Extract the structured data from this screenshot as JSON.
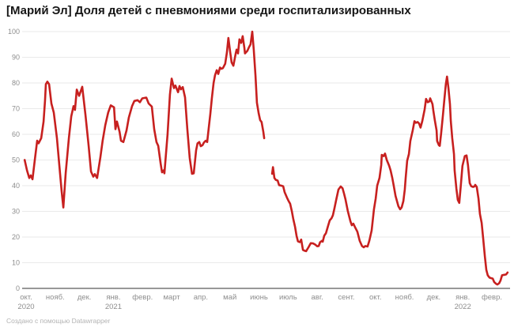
{
  "header": {
    "title": "[Марий Эл] Доля детей с пневмониями среди госпитализированных"
  },
  "footer": {
    "attribution": "Создано с помощью Datawrapper"
  },
  "colors": {
    "background": "#ffffff",
    "line": "#c7201f",
    "grid": "#eaeaea",
    "baseline": "#989898",
    "axis_text": "#8e8e8e",
    "title_text": "#161616",
    "footer_text": "#b3b3b3"
  },
  "chart_data": {
    "type": "line",
    "title": "[Марий Эл] Доля детей с пневмониями среди госпитализированных",
    "xlabel": "",
    "ylabel": "",
    "ylim": [
      0,
      100
    ],
    "grid": true,
    "legend": "none",
    "x_axis_note": "x given as month index along axis: 0 = окт. 2020 tick, 1 = нояб. 2020, ... 16 = февр. 2022; daily data with a gap in июнь 2021",
    "y_ticks": [
      0,
      10,
      20,
      30,
      40,
      50,
      60,
      70,
      80,
      90,
      100
    ],
    "x_tick_labels": [
      "окт.",
      "нояб.",
      "дек.",
      "янв.",
      "февр.",
      "март",
      "апр.",
      "май",
      "июнь",
      "июль",
      "авг.",
      "сент.",
      "окт.",
      "нояб.",
      "дек.",
      "янв.",
      "февр."
    ],
    "x_tick_sublabels": {
      "0": "2020",
      "3": "2021",
      "15": "2022"
    },
    "series": [
      {
        "name": "Доля детей с пневмониями среди госпитализированных, %",
        "color": "#c7201f",
        "segments": [
          [
            [
              -0.05,
              50
            ],
            [
              0.03,
              46
            ],
            [
              0.11,
              43
            ],
            [
              0.16,
              44
            ],
            [
              0.22,
              42.5
            ],
            [
              0.3,
              50
            ],
            [
              0.38,
              57.5
            ],
            [
              0.43,
              56.5
            ],
            [
              0.52,
              58.5
            ],
            [
              0.6,
              65
            ],
            [
              0.65,
              73
            ],
            [
              0.68,
              79.5
            ],
            [
              0.73,
              80.5
            ],
            [
              0.79,
              79.5
            ],
            [
              0.87,
              72
            ],
            [
              0.95,
              68.5
            ],
            [
              1.06,
              58.5
            ],
            [
              1.14,
              48
            ],
            [
              1.22,
              38
            ],
            [
              1.28,
              31.5
            ],
            [
              1.36,
              45
            ],
            [
              1.47,
              58.5
            ],
            [
              1.55,
              67
            ],
            [
              1.63,
              71
            ],
            [
              1.68,
              69.5
            ],
            [
              1.74,
              77.4
            ],
            [
              1.82,
              75
            ],
            [
              1.93,
              78.5
            ],
            [
              2.04,
              67.5
            ],
            [
              2.15,
              55.5
            ],
            [
              2.23,
              45.5
            ],
            [
              2.31,
              43.5
            ],
            [
              2.36,
              44.5
            ],
            [
              2.44,
              43
            ],
            [
              2.55,
              51
            ],
            [
              2.63,
              57.5
            ],
            [
              2.72,
              63.5
            ],
            [
              2.82,
              68.5
            ],
            [
              2.91,
              71.3
            ],
            [
              3.02,
              70.5
            ],
            [
              3.07,
              62
            ],
            [
              3.12,
              65
            ],
            [
              3.21,
              61
            ],
            [
              3.26,
              57.5
            ],
            [
              3.34,
              57
            ],
            [
              3.45,
              61.5
            ],
            [
              3.53,
              66.5
            ],
            [
              3.64,
              71
            ],
            [
              3.72,
              73
            ],
            [
              3.83,
              73.3
            ],
            [
              3.91,
              72.5
            ],
            [
              3.99,
              74
            ],
            [
              4.13,
              74.3
            ],
            [
              4.21,
              72
            ],
            [
              4.32,
              70.8
            ],
            [
              4.4,
              62
            ],
            [
              4.48,
              57
            ],
            [
              4.54,
              55.5
            ],
            [
              4.62,
              48.7
            ],
            [
              4.67,
              45.2
            ],
            [
              4.73,
              46
            ],
            [
              4.75,
              44.8
            ],
            [
              4.86,
              60
            ],
            [
              4.94,
              75.5
            ],
            [
              5.0,
              81.7
            ],
            [
              5.08,
              78
            ],
            [
              5.13,
              79
            ],
            [
              5.22,
              76.4
            ],
            [
              5.27,
              78.8
            ],
            [
              5.32,
              77.5
            ],
            [
              5.38,
              78.4
            ],
            [
              5.46,
              74.4
            ],
            [
              5.54,
              62
            ],
            [
              5.62,
              50.8
            ],
            [
              5.7,
              44.6
            ],
            [
              5.76,
              44.8
            ],
            [
              5.84,
              53.8
            ],
            [
              5.89,
              56.5
            ],
            [
              5.95,
              57
            ],
            [
              6.0,
              55.4
            ],
            [
              6.06,
              55.8
            ],
            [
              6.11,
              56.8
            ],
            [
              6.17,
              57.5
            ],
            [
              6.22,
              57
            ],
            [
              6.27,
              62
            ],
            [
              6.33,
              68
            ],
            [
              6.38,
              74
            ],
            [
              6.44,
              80
            ],
            [
              6.49,
              83
            ],
            [
              6.55,
              85
            ],
            [
              6.6,
              83.5
            ],
            [
              6.66,
              86
            ],
            [
              6.71,
              85.5
            ],
            [
              6.76,
              85.8
            ],
            [
              6.84,
              87.5
            ],
            [
              6.9,
              92
            ],
            [
              6.95,
              97.5
            ],
            [
              7.01,
              92
            ],
            [
              7.06,
              88
            ],
            [
              7.12,
              86.7
            ],
            [
              7.2,
              91.5
            ],
            [
              7.23,
              93
            ],
            [
              7.28,
              91.5
            ],
            [
              7.33,
              97
            ],
            [
              7.39,
              95.6
            ],
            [
              7.44,
              98.2
            ],
            [
              7.5,
              93.5
            ],
            [
              7.52,
              91.5
            ],
            [
              7.6,
              92.5
            ],
            [
              7.66,
              94
            ],
            [
              7.71,
              95
            ],
            [
              7.77,
              100
            ],
            [
              7.82,
              93
            ],
            [
              7.88,
              82.8
            ],
            [
              7.93,
              72.3
            ],
            [
              7.99,
              68.2
            ],
            [
              8.04,
              65.5
            ],
            [
              8.09,
              64.8
            ],
            [
              8.15,
              61
            ],
            [
              8.18,
              58.5
            ]
          ],
          [
            [
              8.45,
              44.6
            ],
            [
              8.48,
              47.2
            ],
            [
              8.53,
              43
            ],
            [
              8.58,
              42.2
            ],
            [
              8.64,
              42
            ],
            [
              8.69,
              40.2
            ],
            [
              8.77,
              40
            ],
            [
              8.83,
              39.8
            ],
            [
              8.88,
              37.5
            ],
            [
              8.96,
              35.4
            ],
            [
              9.02,
              34
            ],
            [
              9.07,
              33
            ],
            [
              9.13,
              30
            ],
            [
              9.18,
              27
            ],
            [
              9.24,
              24
            ],
            [
              9.29,
              20.5
            ],
            [
              9.34,
              18.3
            ],
            [
              9.4,
              18
            ],
            [
              9.45,
              19
            ],
            [
              9.51,
              15
            ],
            [
              9.56,
              14.7
            ],
            [
              9.62,
              14.5
            ],
            [
              9.7,
              16
            ],
            [
              9.78,
              17.6
            ],
            [
              9.86,
              17.5
            ],
            [
              9.94,
              17
            ],
            [
              10.0,
              16.4
            ],
            [
              10.05,
              16.5
            ],
            [
              10.1,
              18
            ],
            [
              10.16,
              18.5
            ],
            [
              10.19,
              18.2
            ],
            [
              10.24,
              20.5
            ],
            [
              10.3,
              21.5
            ],
            [
              10.38,
              24.6
            ],
            [
              10.43,
              26.5
            ],
            [
              10.49,
              27.3
            ],
            [
              10.54,
              28.5
            ],
            [
              10.59,
              31
            ],
            [
              10.65,
              34.4
            ],
            [
              10.73,
              38.5
            ],
            [
              10.81,
              39.7
            ],
            [
              10.87,
              39
            ],
            [
              10.92,
              37
            ],
            [
              10.97,
              34.8
            ],
            [
              11.05,
              30.2
            ],
            [
              11.14,
              26.2
            ],
            [
              11.19,
              24.6
            ],
            [
              11.24,
              25.2
            ],
            [
              11.3,
              23.8
            ],
            [
              11.38,
              22.1
            ],
            [
              11.46,
              18.5
            ],
            [
              11.54,
              16.5
            ],
            [
              11.6,
              16
            ],
            [
              11.65,
              16.5
            ],
            [
              11.73,
              16.3
            ],
            [
              11.79,
              18.5
            ],
            [
              11.87,
              22.6
            ],
            [
              11.95,
              30.8
            ],
            [
              12.01,
              35
            ],
            [
              12.06,
              40
            ],
            [
              12.14,
              43
            ],
            [
              12.2,
              48
            ],
            [
              12.22,
              52
            ],
            [
              12.28,
              51.5
            ],
            [
              12.33,
              52.5
            ],
            [
              12.39,
              50
            ],
            [
              12.47,
              47.8
            ],
            [
              12.52,
              46
            ],
            [
              12.58,
              43
            ],
            [
              12.63,
              40
            ],
            [
              12.69,
              36
            ],
            [
              12.74,
              34
            ],
            [
              12.79,
              32
            ],
            [
              12.85,
              30.8
            ],
            [
              12.9,
              31.5
            ],
            [
              12.96,
              34
            ],
            [
              13.01,
              38.5
            ],
            [
              13.04,
              43
            ],
            [
              13.09,
              49.7
            ],
            [
              13.15,
              52.3
            ],
            [
              13.2,
              57.4
            ],
            [
              13.28,
              61.5
            ],
            [
              13.34,
              65.1
            ],
            [
              13.39,
              64.5
            ],
            [
              13.45,
              64.8
            ],
            [
              13.5,
              64.2
            ],
            [
              13.55,
              62.6
            ],
            [
              13.61,
              65.1
            ],
            [
              13.69,
              69.7
            ],
            [
              13.74,
              73.8
            ],
            [
              13.8,
              72.5
            ],
            [
              13.85,
              72.8
            ],
            [
              13.88,
              74
            ],
            [
              13.96,
              71.8
            ],
            [
              13.99,
              69.2
            ],
            [
              14.04,
              65.6
            ],
            [
              14.1,
              61.5
            ],
            [
              14.12,
              57.4
            ],
            [
              14.18,
              55.8
            ],
            [
              14.21,
              55.5
            ],
            [
              14.26,
              60.5
            ],
            [
              14.32,
              67.7
            ],
            [
              14.37,
              73.8
            ],
            [
              14.42,
              79.5
            ],
            [
              14.46,
              82.5
            ],
            [
              14.51,
              78
            ],
            [
              14.56,
              71.8
            ],
            [
              14.59,
              65.1
            ],
            [
              14.64,
              58.5
            ],
            [
              14.7,
              52.3
            ],
            [
              14.72,
              46
            ],
            [
              14.78,
              39
            ],
            [
              14.83,
              34.5
            ],
            [
              14.88,
              33.3
            ],
            [
              14.94,
              41
            ],
            [
              14.99,
              47.7
            ],
            [
              15.07,
              51.5
            ],
            [
              15.13,
              51.8
            ],
            [
              15.18,
              48
            ],
            [
              15.24,
              41
            ],
            [
              15.29,
              39.8
            ],
            [
              15.35,
              39.5
            ],
            [
              15.4,
              39.7
            ],
            [
              15.43,
              40.3
            ],
            [
              15.48,
              39.5
            ],
            [
              15.54,
              35
            ],
            [
              15.59,
              29
            ],
            [
              15.65,
              25.5
            ],
            [
              15.7,
              19.5
            ],
            [
              15.76,
              12.3
            ],
            [
              15.81,
              7.2
            ],
            [
              15.86,
              5.1
            ],
            [
              15.92,
              4.2
            ],
            [
              15.97,
              4
            ],
            [
              16.03,
              3.8
            ],
            [
              16.08,
              2.5
            ],
            [
              16.14,
              1.8
            ],
            [
              16.19,
              1.5
            ],
            [
              16.25,
              2
            ],
            [
              16.3,
              3.1
            ],
            [
              16.35,
              5.1
            ],
            [
              16.43,
              5.3
            ],
            [
              16.49,
              5.4
            ],
            [
              16.54,
              6.2
            ]
          ]
        ]
      }
    ]
  }
}
